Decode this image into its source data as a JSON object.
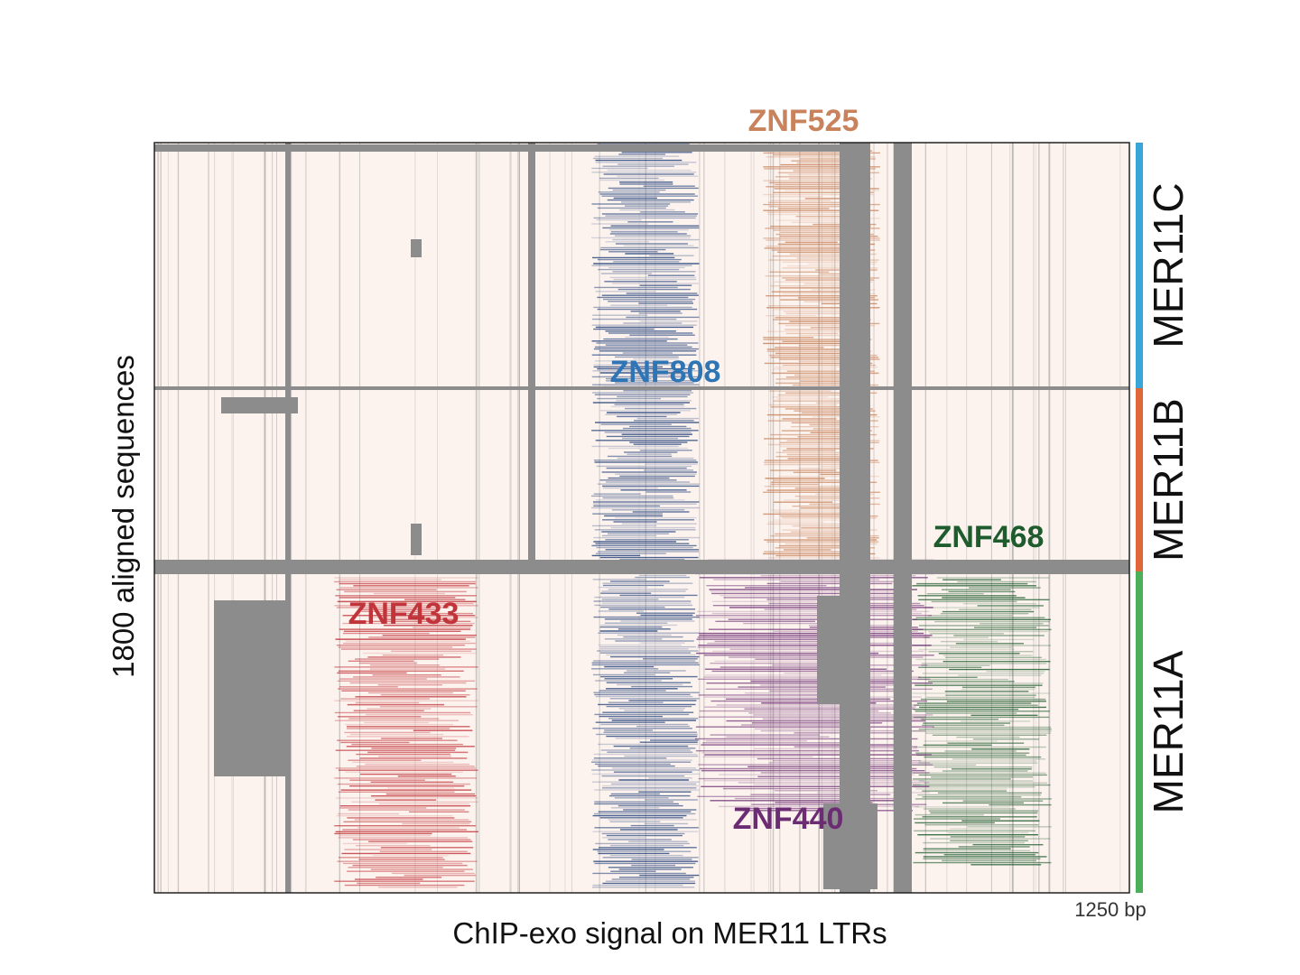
{
  "figure": {
    "x_label": "ChIP-exo signal on MER11 LTRs",
    "y_label": "1800 aligned sequences",
    "x_end_label": "1250 bp",
    "annotations": [
      {
        "text": "ZNF525",
        "color": "#c8835c"
      },
      {
        "text": "ZNF808",
        "color": "#2e75b6"
      },
      {
        "text": "ZNF468",
        "color": "#1e5c2e"
      },
      {
        "text": "ZNF433",
        "color": "#c0343a"
      },
      {
        "text": "ZNF440",
        "color": "#6b2c73"
      }
    ],
    "groups": [
      {
        "name": "MER11C",
        "color": "#3aa5d8"
      },
      {
        "name": "MER11B",
        "color": "#e0673a"
      },
      {
        "name": "MER11A",
        "color": "#4caf5a"
      }
    ]
  }
}
